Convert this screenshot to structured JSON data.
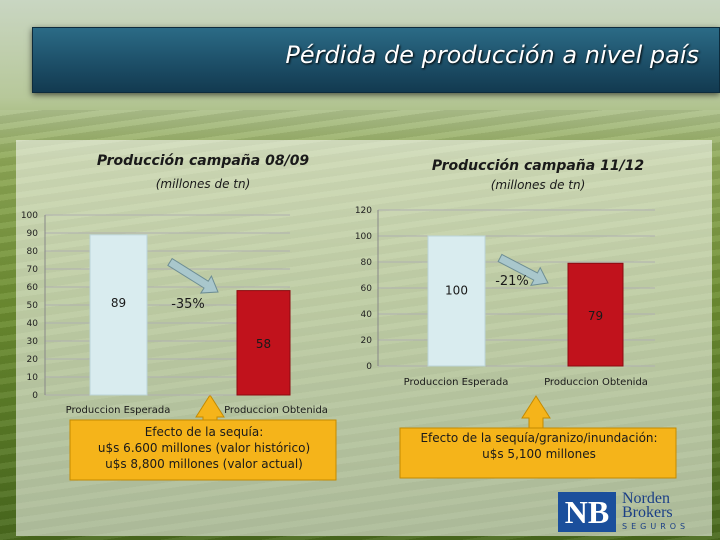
{
  "title": "Pérdida de producción a nivel país",
  "chart_data": [
    {
      "type": "bar",
      "title": "Producción campaña 08/09",
      "subtitle": "(millones de tn)",
      "categories": [
        "Produccion Esperada",
        "Produccion Obtenida"
      ],
      "values": [
        89,
        58
      ],
      "data_labels": [
        "89",
        "58"
      ],
      "ylim": [
        0,
        100
      ],
      "yticks": [
        "0",
        "10",
        "20",
        "30",
        "40",
        "50",
        "60",
        "70",
        "80",
        "90",
        "100"
      ],
      "change_label": "-35%",
      "callout": [
        "Efecto de la sequía:",
        "u$s 6.600 millones (valor histórico)",
        "u$s 8,800 millones (valor actual)"
      ],
      "colors": [
        "#d9ecef",
        "#c1121c"
      ]
    },
    {
      "type": "bar",
      "title": "Producción campaña 11/12",
      "subtitle": "(millones de tn)",
      "categories": [
        "Produccion Esperada",
        "Produccion Obtenida"
      ],
      "values": [
        100,
        79
      ],
      "data_labels": [
        "100",
        "79"
      ],
      "ylim": [
        0,
        120
      ],
      "yticks": [
        "0",
        "20",
        "40",
        "60",
        "80",
        "100",
        "120"
      ],
      "change_label": "-21%",
      "callout": [
        "Efecto de la sequía/granizo/inundación:",
        "u$s 5,100 millones"
      ],
      "colors": [
        "#d9ecef",
        "#c1121c"
      ]
    }
  ],
  "logo": {
    "initials": "NB",
    "line1": "Norden",
    "line2": "Brokers",
    "line3": "SEGUROS"
  },
  "colors": {
    "title_bar": "#1d4f68",
    "callout_fill": "#f5b41a",
    "arrow_fill": "#a9c7cc"
  }
}
